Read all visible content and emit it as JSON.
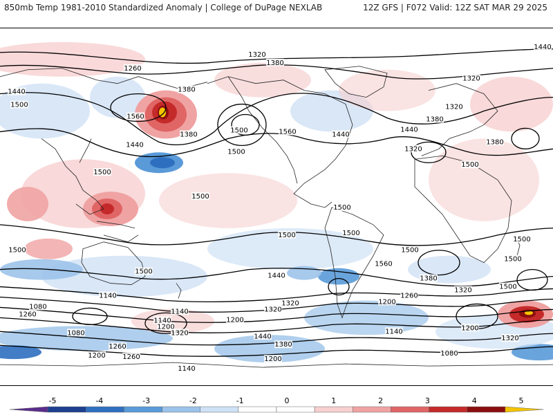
{
  "header": {
    "left": "850mb Temp 1981-2010 Standardized Anomaly | College of DuPage NEXLAB",
    "right": "12Z GFS | F072 Valid: 12Z SAT MAR 29 2025"
  },
  "colorbar": {
    "ticks": [
      "-5",
      "-4",
      "-3",
      "-2",
      "-1",
      "0",
      "1",
      "2",
      "3",
      "4",
      "5"
    ],
    "colors": [
      "#5a2d8c",
      "#1e3f8f",
      "#2f6fc0",
      "#5a9ad8",
      "#9cc3ea",
      "#cfe1f5",
      "#ffffff",
      "#ffffff",
      "#f7d0d0",
      "#f0a3a3",
      "#e06565",
      "#c52a2a",
      "#8b0e0e",
      "#f5c400"
    ]
  },
  "contour_labels": [
    "1320",
    "1380",
    "1440",
    "1260",
    "1440",
    "1320",
    "1380",
    "1500",
    "1560",
    "1380",
    "1500",
    "1440",
    "1500",
    "1440",
    "1560",
    "1320",
    "1380",
    "1320",
    "1440",
    "1380",
    "1500",
    "1500",
    "1500",
    "1500",
    "1500",
    "1500",
    "1500",
    "1500",
    "1500",
    "1500",
    "1500",
    "1500",
    "1560",
    "1440",
    "1380",
    "1320",
    "1200",
    "1140",
    "1080",
    "1260",
    "1320",
    "1200",
    "1140",
    "1080",
    "1200",
    "1260",
    "1140",
    "1200",
    "1260",
    "1320",
    "1440",
    "1380",
    "1320",
    "1260",
    "1200",
    "1140",
    "1080",
    "1320",
    "1200",
    "1140"
  ]
}
